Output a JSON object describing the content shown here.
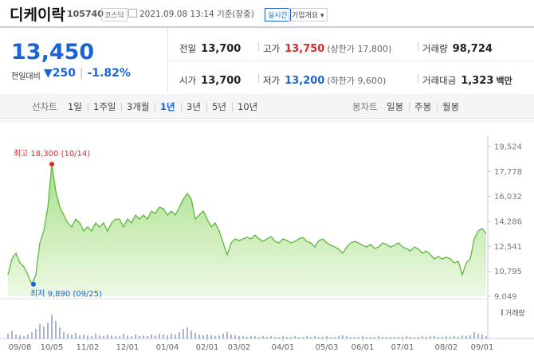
{
  "header": {
    "name": "디케이락",
    "code": "105740",
    "market": "코스닥",
    "timestamp": "2021.09.08 13:14 기준(장중)",
    "realtime": "실시간",
    "company_info": "기업개요"
  },
  "summary": {
    "price": "13,450",
    "change_label": "전일대비",
    "change": "250",
    "change_pct": "-1.82%",
    "rows": [
      [
        {
          "label": "전일",
          "value": "13,700"
        },
        {
          "label": "고가",
          "value": "13,750",
          "note": "(상한가 17,800)"
        },
        {
          "label": "거래량",
          "value": "98,724"
        }
      ],
      [
        {
          "label": "시가",
          "value": "13,700"
        },
        {
          "label": "저가",
          "value": "13,200",
          "note": "(하한가 9,600)"
        },
        {
          "label": "거래대금",
          "value": "1,323",
          "unit": "백만"
        }
      ]
    ]
  },
  "tabs": {
    "line_chart": "선차트",
    "periods": [
      "1일",
      "1주일",
      "3개월",
      "1년",
      "3년",
      "5년",
      "10년"
    ],
    "active_period": 3,
    "candle_chart": "봉차트",
    "candles": [
      "일봉",
      "주봉",
      "월봉"
    ]
  },
  "chart_data": {
    "type": "area",
    "categories": [
      null,
      null,
      null,
      "09/08",
      null,
      null,
      null,
      null,
      null,
      null,
      null,
      "10/05",
      null,
      null,
      null,
      null,
      null,
      null,
      null,
      null,
      "11/02",
      null,
      null,
      null,
      null,
      null,
      null,
      null,
      null,
      null,
      "12/01",
      null,
      null,
      null,
      null,
      null,
      null,
      null,
      null,
      null,
      "01/04",
      null,
      null,
      null,
      null,
      null,
      null,
      null,
      null,
      null,
      "02/01",
      null,
      null,
      null,
      null,
      null,
      null,
      null,
      "03/02",
      null,
      null,
      null,
      null,
      null,
      null,
      null,
      null,
      null,
      null,
      "04/01",
      null,
      null,
      null,
      null,
      null,
      null,
      null,
      null,
      null,
      null,
      "05/03",
      null,
      null,
      null,
      null,
      null,
      null,
      null,
      null,
      "06/01",
      null,
      null,
      null,
      null,
      null,
      null,
      null,
      null,
      null,
      "07/01",
      null,
      null,
      null,
      null,
      null,
      null,
      null,
      null,
      null,
      null,
      "08/02",
      null,
      null,
      null,
      null,
      null,
      null,
      null,
      null,
      "09/01",
      null
    ],
    "series": [
      {
        "color": "#5cb83c",
        "values": [
          10550,
          11670,
          12060,
          11390,
          11110,
          10550,
          9890,
          10550,
          12780,
          13620,
          15290,
          18300,
          16400,
          15290,
          14730,
          14180,
          13900,
          14450,
          14180,
          13620,
          13900,
          13620,
          14180,
          13900,
          14180,
          13620,
          14180,
          14450,
          14450,
          13900,
          14450,
          14180,
          14730,
          14450,
          14730,
          14450,
          15010,
          14840,
          15290,
          15180,
          14730,
          15010,
          14730,
          15290,
          15850,
          16240,
          15850,
          14450,
          14730,
          15010,
          14450,
          13900,
          14180,
          13620,
          12780,
          11950,
          12780,
          13060,
          12950,
          13060,
          13170,
          13060,
          13340,
          13060,
          12890,
          13060,
          13230,
          12890,
          12780,
          13060,
          12950,
          12780,
          12890,
          13060,
          13170,
          12890,
          12780,
          12500,
          12950,
          13060,
          12780,
          12610,
          12500,
          12340,
          12060,
          12500,
          12780,
          12890,
          12780,
          12610,
          12500,
          12670,
          12390,
          12500,
          12780,
          12670,
          12500,
          12610,
          12780,
          12500,
          12390,
          12220,
          12500,
          12340,
          12060,
          12220,
          11950,
          11670,
          11830,
          11670,
          11780,
          11670,
          11390,
          11500,
          10550,
          11390,
          11670,
          13060,
          13620,
          13790,
          13450
        ]
      },
      {
        "name": "거래량",
        "color": "#8a9cc4",
        "axis": "y2",
        "values": [
          6,
          10,
          5,
          4,
          3,
          5,
          8,
          12,
          18,
          15,
          20,
          30,
          22,
          14,
          8,
          6,
          5,
          7,
          4,
          5,
          4,
          3,
          6,
          4,
          3,
          5,
          4,
          3,
          3,
          6,
          4,
          3,
          5,
          3,
          4,
          3,
          5,
          4,
          6,
          5,
          4,
          6,
          5,
          8,
          12,
          14,
          10,
          7,
          5,
          4,
          5,
          4,
          3,
          4,
          6,
          8,
          5,
          4,
          3,
          3,
          2,
          3,
          3,
          2,
          3,
          2,
          3,
          2,
          2,
          3,
          2,
          2,
          3,
          2,
          2,
          3,
          2,
          3,
          2,
          2,
          3,
          2,
          2,
          3,
          4,
          3,
          2,
          2,
          2,
          3,
          2,
          2,
          2,
          3,
          2,
          2,
          2,
          2,
          2,
          2,
          3,
          2,
          2,
          2,
          3,
          2,
          3,
          3,
          2,
          2,
          3,
          2,
          3,
          2,
          4,
          3,
          4,
          8,
          6,
          5,
          3
        ]
      }
    ],
    "ylim": [
      9049,
      19524
    ],
    "yticks": [
      {
        "value": 9049,
        "label": "9,049"
      },
      {
        "value": 10795,
        "label": "10,795"
      },
      {
        "value": 12541,
        "label": "12,541"
      },
      {
        "value": 14286,
        "label": "14,286"
      },
      {
        "value": 16032,
        "label": "16,032"
      },
      {
        "value": 17778,
        "label": "17,778"
      },
      {
        "value": 19524,
        "label": "19,524"
      }
    ],
    "annotations": {
      "high": {
        "text": "최고 18,300 (10/14)",
        "color": "#e0262c"
      },
      "low": {
        "text": "최저 9,890 (09/25)",
        "color": "#1a63d6"
      }
    }
  }
}
